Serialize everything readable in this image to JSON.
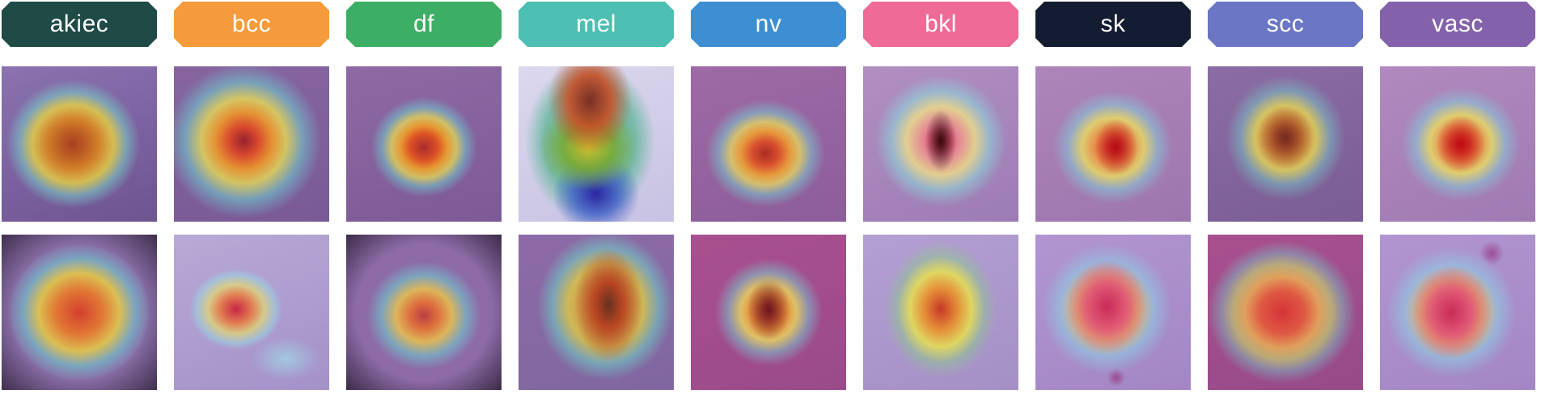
{
  "classes": [
    {
      "label": "akiec",
      "color": "#1f4a46"
    },
    {
      "label": "bcc",
      "color": "#f59b3c"
    },
    {
      "label": "df",
      "color": "#3dae65"
    },
    {
      "label": "mel",
      "color": "#4dbfb2"
    },
    {
      "label": "nv",
      "color": "#3d8fd2"
    },
    {
      "label": "bkl",
      "color": "#ee6b97"
    },
    {
      "label": "sk",
      "color": "#141c32"
    },
    {
      "label": "scc",
      "color": "#6b76c4"
    },
    {
      "label": "vasc",
      "color": "#8462ab"
    }
  ]
}
